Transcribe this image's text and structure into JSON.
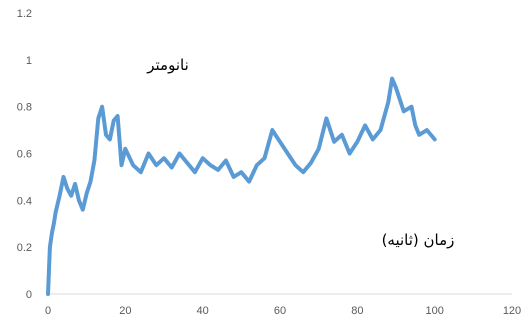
{
  "chart_data": {
    "type": "line",
    "x_ticks": [
      "0",
      "20",
      "40",
      "60",
      "80",
      "100",
      "120"
    ],
    "y_ticks": [
      "0",
      "0.2",
      "0.4",
      "0.6",
      "0.8",
      "1",
      "1.2"
    ],
    "xlim": [
      0,
      120
    ],
    "ylim": [
      0,
      1.2
    ],
    "grid": false,
    "legend": "none",
    "annotations": {
      "y_unit": "نانومتر",
      "x_unit": "زمان (ثانیه)"
    },
    "series": [
      {
        "color": "#5b9bd5",
        "x": [
          0,
          0.5,
          1,
          1.5,
          2,
          3,
          4,
          5,
          6,
          7,
          8,
          9,
          10,
          11,
          12,
          13,
          14,
          15,
          16,
          17,
          18,
          19,
          20,
          22,
          24,
          26,
          28,
          30,
          32,
          34,
          36,
          38,
          40,
          42,
          44,
          46,
          48,
          50,
          52,
          54,
          56,
          58,
          60,
          62,
          64,
          66,
          68,
          70,
          72,
          74,
          76,
          78,
          80,
          82,
          84,
          86,
          88,
          89,
          90,
          92,
          94,
          95,
          96,
          98,
          100
        ],
        "y": [
          0.0,
          0.2,
          0.26,
          0.3,
          0.35,
          0.42,
          0.5,
          0.45,
          0.42,
          0.47,
          0.4,
          0.36,
          0.43,
          0.48,
          0.57,
          0.75,
          0.8,
          0.68,
          0.66,
          0.74,
          0.76,
          0.55,
          0.62,
          0.55,
          0.52,
          0.6,
          0.55,
          0.58,
          0.54,
          0.6,
          0.56,
          0.52,
          0.58,
          0.55,
          0.53,
          0.57,
          0.5,
          0.52,
          0.48,
          0.55,
          0.58,
          0.7,
          0.65,
          0.6,
          0.55,
          0.52,
          0.56,
          0.62,
          0.75,
          0.65,
          0.68,
          0.6,
          0.65,
          0.72,
          0.66,
          0.7,
          0.82,
          0.92,
          0.88,
          0.78,
          0.8,
          0.72,
          0.68,
          0.7,
          0.66
        ]
      }
    ]
  }
}
